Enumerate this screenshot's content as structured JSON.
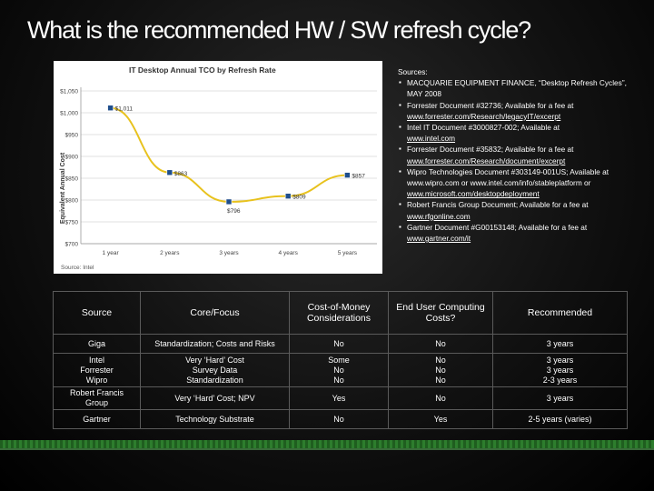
{
  "slide": {
    "title": "What is the recommended HW / SW refresh cycle?"
  },
  "colors": {
    "background": "#111111",
    "curve": "#e8c21e",
    "marker": "#1f4e8c",
    "table_border": "#5a5a5a",
    "stripe": "#2d7d2d"
  },
  "chart_data": {
    "type": "line",
    "title": "IT Desktop Annual TCO by Refresh Rate",
    "xlabel": "",
    "ylabel": "Equivalent Annual Cost",
    "categories": [
      "1 year",
      "2 years",
      "3 years",
      "4 years",
      "5 years"
    ],
    "values": [
      1011,
      863,
      796,
      809,
      857
    ],
    "data_labels": [
      "$1,011",
      "$863",
      "$796",
      "$809",
      "$857"
    ],
    "y_ticks": [
      "$700",
      "$750",
      "$800",
      "$850",
      "$900",
      "$950",
      "$1,000",
      "$1,050"
    ],
    "y_tick_values": [
      700,
      750,
      800,
      850,
      900,
      950,
      1000,
      1050
    ],
    "ylim": [
      700,
      1050
    ],
    "grid": true,
    "legend": "none",
    "source_note": "Source: Intel"
  },
  "sources": {
    "header": "Sources:",
    "items": [
      {
        "text": "MACQUARIE EQUIPMENT FINANCE, “Desktop Refresh Cycles”, MAY 2008",
        "link": ""
      },
      {
        "text": "Forrester Document #32736; Available for a fee at",
        "link": "www.forrester.com/Research/legacyIT/excerpt"
      },
      {
        "text": "Intel IT Document #3000827-002; Available at",
        "link": "www.intel.com"
      },
      {
        "text": "Forrester Document #35832; Available for a fee at",
        "link": "www.forrester.com/Research/document/excerpt"
      },
      {
        "text": "Wipro Technologies Document #303149-001US; Available at www.wipro.com or www.intel.com/info/stableplatform or",
        "link": "www.microsoft.com/desktopdeployment"
      },
      {
        "text": "Robert Francis Group Document; Available for a fee at",
        "link": "www.rfgonline.com"
      },
      {
        "text": "Gartner Document #G00153148; Available for a fee at",
        "link": "www.gartner.com/it"
      }
    ]
  },
  "table": {
    "headers": [
      "Source",
      "Core/Focus",
      "Cost-of-Money Considerations",
      "End User Computing Costs?",
      "Recommended"
    ],
    "rows": [
      [
        [
          "Giga"
        ],
        [
          "Standardization; Costs and Risks"
        ],
        [
          "No"
        ],
        [
          "No"
        ],
        [
          "3 years"
        ]
      ],
      [
        [
          "Intel",
          "Forrester",
          "Wipro"
        ],
        [
          "Very ‘Hard’ Cost",
          "Survey Data",
          "Standardization"
        ],
        [
          "Some",
          "No",
          "No"
        ],
        [
          "No",
          "No",
          "No"
        ],
        [
          "3 years",
          "3 years",
          "2-3 years"
        ]
      ],
      [
        [
          "Robert Francis",
          "Group"
        ],
        [
          "Very ‘Hard’ Cost; NPV"
        ],
        [
          "Yes"
        ],
        [
          "No"
        ],
        [
          "3 years"
        ]
      ],
      [
        [
          "Gartner"
        ],
        [
          "Technology Substrate"
        ],
        [
          "No"
        ],
        [
          "Yes"
        ],
        [
          "2-5 years (varies)"
        ]
      ]
    ]
  }
}
